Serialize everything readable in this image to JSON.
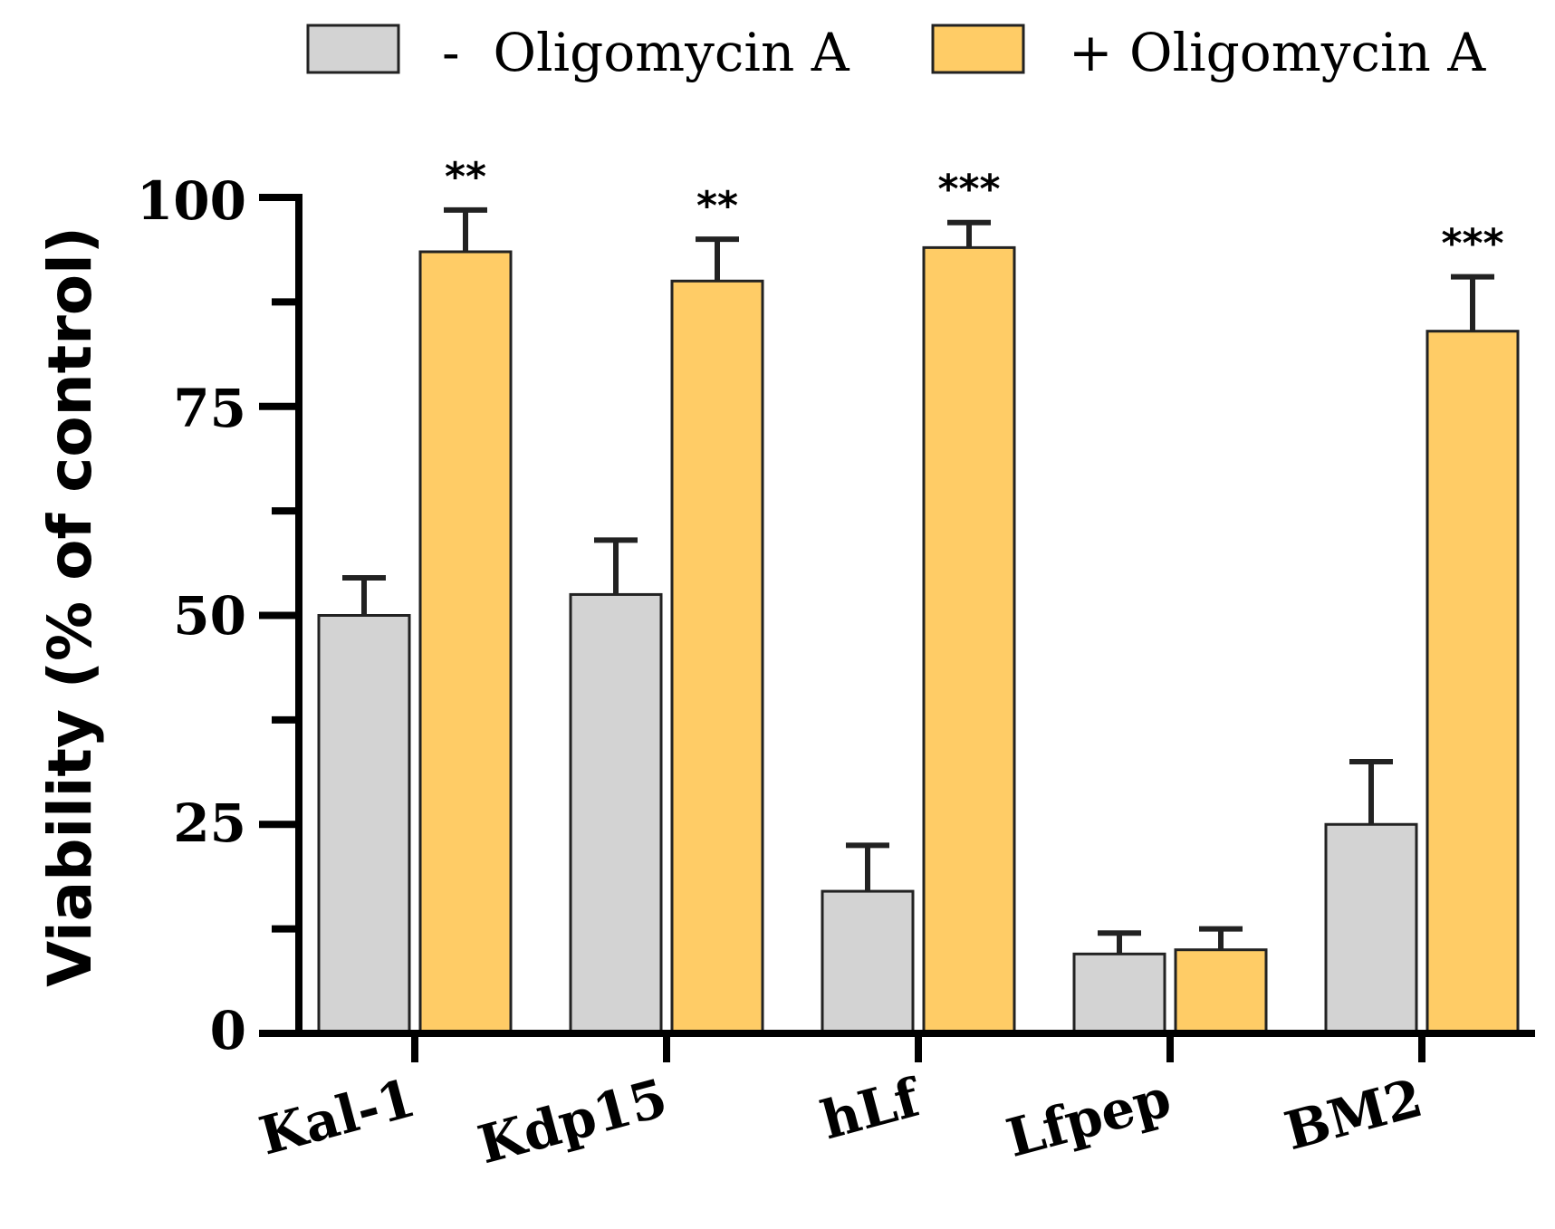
{
  "chart_data": {
    "type": "bar",
    "title": "",
    "xlabel": "",
    "ylabel": "Viability (% of control)",
    "ylim": [
      0,
      100
    ],
    "yticks": [
      0,
      25,
      50,
      75,
      100
    ],
    "ytick_labels": [
      "0",
      "25",
      "50",
      "75",
      "100"
    ],
    "categories": [
      "Kal-1",
      "Kdp15",
      "hLf",
      "Lfpep",
      "BM2"
    ],
    "series": [
      {
        "name": "-  Oligomycin A",
        "color": "#d3d3d3",
        "values": [
          50,
          52.5,
          17,
          9.5,
          25
        ],
        "errors": [
          4.5,
          6.5,
          5.5,
          2.5,
          7.5
        ]
      },
      {
        "name": "+ Oligomycin A",
        "color": "#ffcc66",
        "values": [
          93.5,
          90,
          94,
          10,
          84
        ],
        "errors": [
          5,
          5,
          3,
          2.5,
          6.5
        ]
      }
    ],
    "significance": [
      "**",
      "**",
      "***",
      "",
      "***"
    ],
    "legend_position": "top",
    "grid": false
  }
}
